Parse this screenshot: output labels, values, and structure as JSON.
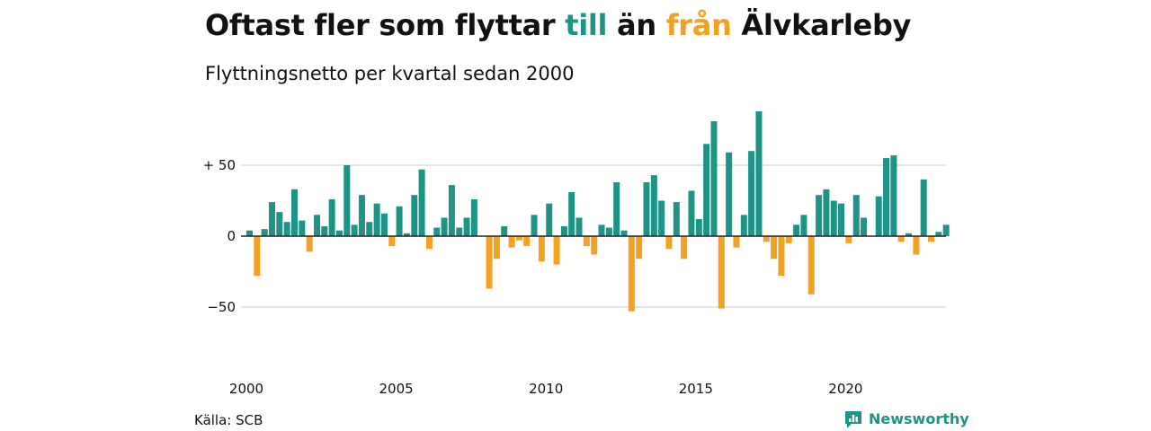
{
  "colors": {
    "positive": "#1f9486",
    "negative": "#f2a122",
    "grid": "#dddddd",
    "baseline": "#222222",
    "brand": "#1f9486"
  },
  "title": {
    "part1": "Oftast fler som flyttar ",
    "highlight1": "till",
    "part2": " än ",
    "highlight2": "från",
    "part3": " Älvkarleby"
  },
  "subtitle": "Flyttningsnetto per kvartal sedan 2000",
  "source": "Källa: SCB",
  "brand": {
    "name": "Newsworthy",
    "icon": "newsworthy-logo-icon"
  },
  "chart_data": {
    "type": "bar",
    "title": "Oftast fler som flyttar till än från Älvkarleby",
    "subtitle": "Flyttningsnetto per kvartal sedan 2000",
    "x_start_year": 2000,
    "periods_per_year": 4,
    "x_ticks": [
      "2000",
      "2005",
      "2010",
      "2015",
      "2020"
    ],
    "y_ticks": [
      {
        "value": 50,
        "label": "+ 50"
      },
      {
        "value": 0,
        "label": "0"
      },
      {
        "value": -50,
        "label": "−50"
      }
    ],
    "ylim": [
      -75,
      92
    ],
    "grid": true,
    "values": [
      4,
      -28,
      5,
      24,
      17,
      10,
      33,
      11,
      -11,
      15,
      7,
      26,
      4,
      50,
      8,
      29,
      10,
      23,
      16,
      -7,
      21,
      2,
      29,
      47,
      -9,
      6,
      13,
      36,
      6,
      13,
      26,
      0,
      -37,
      -16,
      7,
      -8,
      -3,
      -7,
      15,
      -18,
      23,
      -20,
      7,
      31,
      13,
      -7,
      -13,
      8,
      6,
      38,
      4,
      -53,
      -16,
      38,
      43,
      25,
      -9,
      24,
      -16,
      32,
      12,
      65,
      81,
      -51,
      59,
      -8,
      15,
      60,
      88,
      -4,
      -16,
      -28,
      -5,
      8,
      15,
      -41,
      29,
      33,
      25,
      23,
      -5,
      29,
      13,
      0,
      28,
      55,
      57,
      -4,
      2,
      -13,
      40,
      -4,
      3,
      8
    ]
  }
}
